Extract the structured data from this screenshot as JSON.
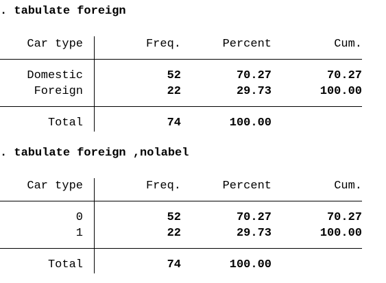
{
  "outputs": [
    {
      "command": ". tabulate foreign",
      "headers": {
        "label": "Car type",
        "freq": "Freq.",
        "percent": "Percent",
        "cum": "Cum."
      },
      "rows": [
        {
          "label": "Domestic",
          "freq": "52",
          "percent": "70.27",
          "cum": "70.27"
        },
        {
          "label": "Foreign",
          "freq": "22",
          "percent": "29.73",
          "cum": "100.00"
        }
      ],
      "total": {
        "label": "Total",
        "freq": "74",
        "percent": "100.00",
        "cum": ""
      }
    },
    {
      "command": ". tabulate foreign ,nolabel",
      "headers": {
        "label": "Car type",
        "freq": "Freq.",
        "percent": "Percent",
        "cum": "Cum."
      },
      "rows": [
        {
          "label": "0",
          "freq": "52",
          "percent": "70.27",
          "cum": "70.27"
        },
        {
          "label": "1",
          "freq": "22",
          "percent": "29.73",
          "cum": "100.00"
        }
      ],
      "total": {
        "label": "Total",
        "freq": "74",
        "percent": "100.00",
        "cum": ""
      }
    }
  ]
}
